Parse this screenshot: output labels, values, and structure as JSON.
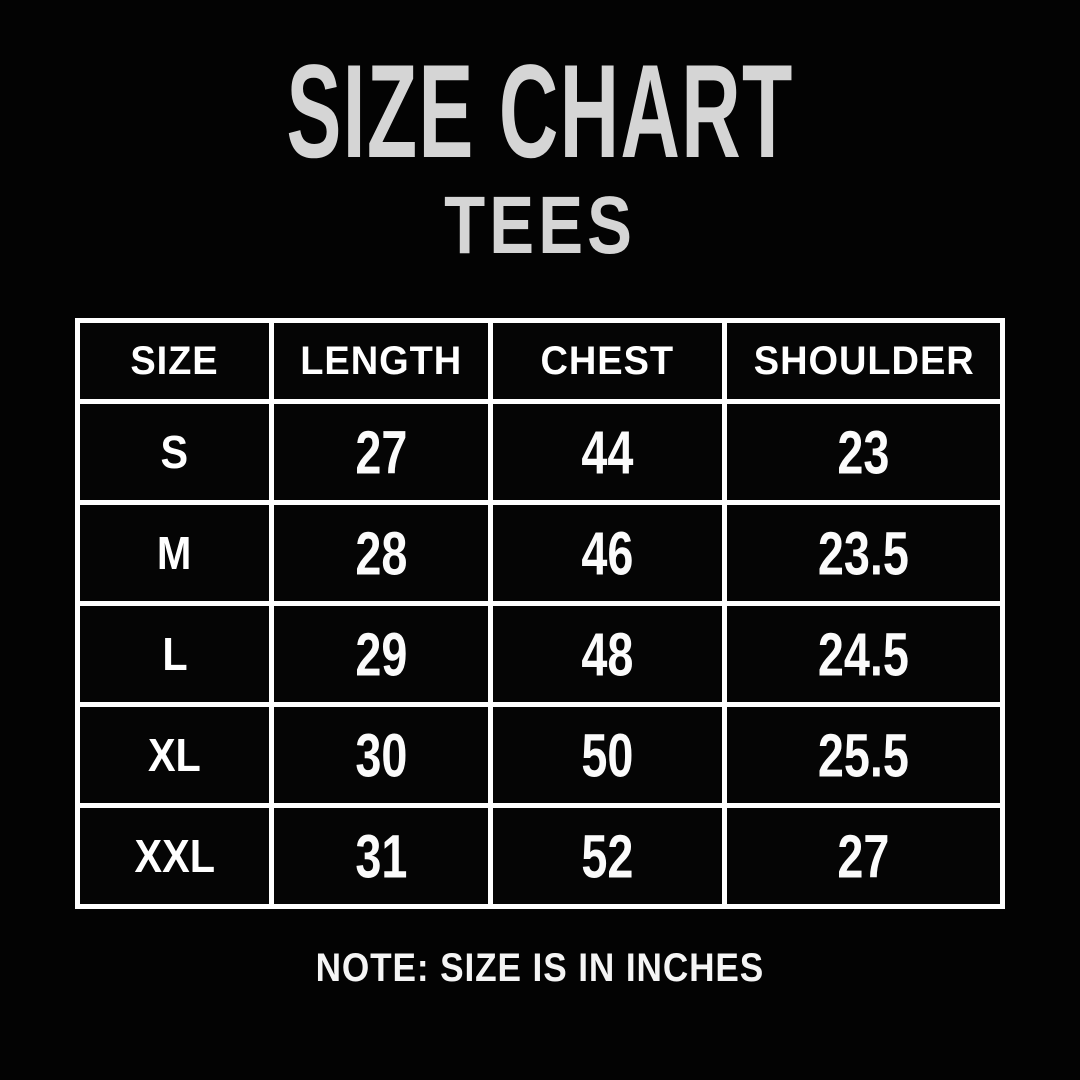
{
  "page": {
    "background_color": "#030303",
    "title": "SIZE CHART",
    "subtitle": "TEES",
    "note": "NOTE: SIZE IS IN INCHES",
    "title_color": "#d5d5d5",
    "table_text_color": "#ffffff",
    "table_border_color": "#ffffff"
  },
  "chart_data": {
    "type": "table",
    "title": "SIZE CHART",
    "subtitle": "TEES",
    "columns": [
      "SIZE",
      "LENGTH",
      "CHEST",
      "SHOULDER"
    ],
    "rows": [
      [
        "S",
        "27",
        "44",
        "23"
      ],
      [
        "M",
        "28",
        "46",
        "23.5"
      ],
      [
        "L",
        "29",
        "48",
        "24.5"
      ],
      [
        "XL",
        "30",
        "50",
        "25.5"
      ],
      [
        "XXL",
        "31",
        "52",
        "27"
      ]
    ],
    "units": "inches",
    "note": "NOTE: SIZE IS IN INCHES"
  }
}
